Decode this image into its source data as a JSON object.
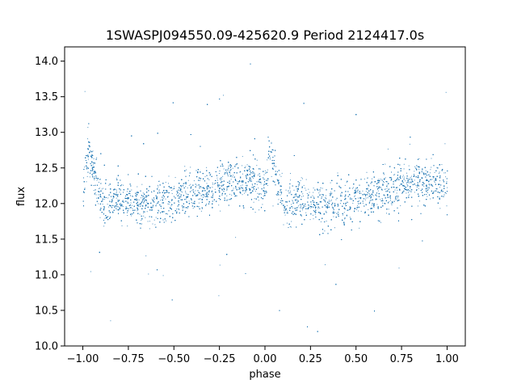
{
  "chart_data": {
    "type": "scatter",
    "title": "1SWASPJ094550.09-425620.9 Period 2124417.0s",
    "xlabel": "phase",
    "ylabel": "flux",
    "xlim": [
      -1.1,
      1.1
    ],
    "ylim": [
      10.0,
      14.2
    ],
    "xticks": [
      -1.0,
      -0.75,
      -0.5,
      -0.25,
      0.0,
      0.25,
      0.5,
      0.75,
      1.0
    ],
    "xtick_labels": [
      "−1.00",
      "−0.75",
      "−0.50",
      "−0.25",
      "0.00",
      "0.25",
      "0.50",
      "0.75",
      "1.00"
    ],
    "yticks": [
      10.0,
      10.5,
      11.0,
      11.5,
      12.0,
      12.5,
      13.0,
      13.5,
      14.0
    ],
    "ytick_labels": [
      "10.0",
      "10.5",
      "11.0",
      "11.5",
      "12.0",
      "12.5",
      "13.0",
      "13.5",
      "14.0"
    ],
    "grid": false,
    "legend": "none",
    "color": "#1f77b4",
    "phase_range": [
      -1.0,
      1.0
    ],
    "baseline_flux": 12.1,
    "typical_band": [
      11.5,
      12.8
    ],
    "max_flux": 14.05,
    "min_flux": 10.2,
    "series": [
      {
        "x": [
          -1.0,
          -0.98,
          -0.97,
          -0.95,
          -0.9,
          -0.85,
          -0.8,
          -0.75,
          -0.7,
          -0.65,
          -0.6,
          -0.55,
          -0.5,
          -0.45,
          -0.4,
          -0.35,
          -0.3,
          -0.25,
          -0.2,
          -0.15,
          -0.1,
          -0.05,
          0.0,
          0.02,
          0.03,
          0.05,
          0.1,
          0.15,
          0.2,
          0.25,
          0.3,
          0.35,
          0.4,
          0.45,
          0.5,
          0.55,
          0.6,
          0.65,
          0.7,
          0.75,
          0.8,
          0.85,
          0.9,
          0.95,
          1.0
        ],
        "y": [
          12.2,
          12.6,
          12.8,
          12.5,
          12.0,
          12.0,
          12.1,
          12.0,
          12.0,
          12.0,
          12.0,
          12.05,
          12.1,
          12.1,
          12.15,
          12.2,
          12.2,
          12.3,
          12.3,
          12.3,
          12.3,
          12.3,
          12.2,
          12.6,
          12.8,
          12.5,
          12.0,
          12.0,
          12.1,
          12.0,
          12.0,
          12.0,
          12.0,
          12.05,
          12.1,
          12.1,
          12.15,
          12.2,
          12.2,
          12.3,
          12.3,
          12.3,
          12.3,
          12.3,
          12.2
        ]
      }
    ]
  }
}
